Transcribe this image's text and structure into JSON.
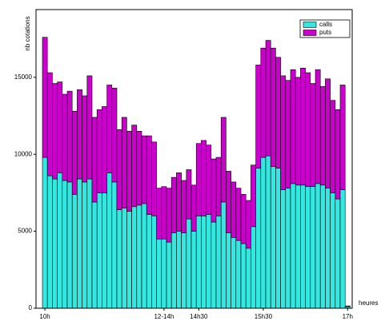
{
  "chart_data": {
    "type": "stacked_bar",
    "y_label": "nb cotations",
    "x_label": "heures",
    "categories": [
      "10h",
      null,
      null,
      null,
      null,
      null,
      null,
      null,
      null,
      null,
      null,
      null,
      null,
      null,
      null,
      null,
      null,
      null,
      null,
      null,
      null,
      null,
      null,
      null,
      "12-14h",
      null,
      null,
      null,
      null,
      null,
      null,
      "14h30",
      null,
      null,
      null,
      null,
      null,
      null,
      null,
      null,
      null,
      null,
      null,
      null,
      "15h30",
      null,
      null,
      null,
      null,
      null,
      null,
      null,
      null,
      null,
      null,
      null,
      null,
      null,
      null,
      null,
      null,
      "17h"
    ],
    "series": [
      {
        "name": "calls",
        "color": "#33e8e0",
        "values": [
          9800,
          8600,
          8400,
          8800,
          8300,
          8200,
          7400,
          8400,
          8200,
          8400,
          6900,
          7500,
          7500,
          8800,
          8200,
          6400,
          6500,
          6300,
          6600,
          6700,
          6800,
          6100,
          6000,
          4500,
          4500,
          4300,
          4900,
          5000,
          4900,
          5800,
          5000,
          6000,
          6000,
          6100,
          5600,
          6000,
          6900,
          4900,
          4600,
          4400,
          4200,
          3900,
          5300,
          9100,
          9800,
          9900,
          9200,
          9100,
          7700,
          7800,
          8100,
          8000,
          8000,
          7900,
          7900,
          8100,
          8000,
          7800,
          7500,
          7100,
          7700,
          100
        ]
      },
      {
        "name": "puts",
        "color": "#cc00cc",
        "values": [
          7800,
          6700,
          6200,
          5900,
          5600,
          5900,
          5400,
          5800,
          5600,
          6700,
          5500,
          5400,
          5600,
          5700,
          6100,
          5200,
          5900,
          5200,
          5300,
          4800,
          4400,
          5100,
          4800,
          3300,
          3400,
          3500,
          3600,
          3800,
          3400,
          3200,
          3000,
          4700,
          4900,
          4500,
          4100,
          3800,
          5500,
          4000,
          3600,
          3400,
          3200,
          3100,
          4000,
          6700,
          7100,
          7500,
          7700,
          7200,
          7400,
          7000,
          7400,
          7000,
          7600,
          7400,
          6700,
          7400,
          6400,
          7100,
          6000,
          5800,
          6800,
          50
        ]
      }
    ],
    "ylim": [
      0,
      19400
    ],
    "yticks": [
      0,
      5000,
      10000,
      15000
    ],
    "legend": "top-right"
  }
}
